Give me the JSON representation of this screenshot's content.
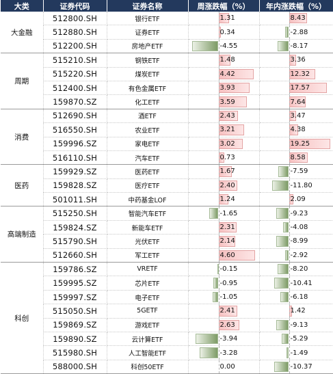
{
  "headers": {
    "category": "大类",
    "code": "证券代码",
    "name": "证券名称",
    "week": "周涨跌幅（%）",
    "year": "年内涨跌幅（%）"
  },
  "colors": {
    "header_bg": "#23395d",
    "positive": "#f4a7a7",
    "negative": "#7d9b66"
  },
  "groups": [
    {
      "name": "大金融",
      "rows": [
        {
          "code": "512800.SH",
          "name": "银行ETF",
          "week": "1.31",
          "year": "8.43"
        },
        {
          "code": "512880.SH",
          "name": "证券ETF",
          "week": "0.34",
          "year": "-2.88"
        },
        {
          "code": "512200.SH",
          "name": "房地产ETF",
          "week": "-4.55",
          "year": "-8.17"
        }
      ]
    },
    {
      "name": "周期",
      "rows": [
        {
          "code": "515210.SH",
          "name": "钢铁ETF",
          "week": "1.48",
          "year": "3.36"
        },
        {
          "code": "515220.SH",
          "name": "煤炭ETF",
          "week": "4.42",
          "year": "12.32"
        },
        {
          "code": "512400.SH",
          "name": "有色金属ETF",
          "week": "3.93",
          "year": "17.57"
        },
        {
          "code": "159870.SZ",
          "name": "化工ETF",
          "week": "3.59",
          "year": "7.64"
        }
      ]
    },
    {
      "name": "消费",
      "rows": [
        {
          "code": "512690.SH",
          "name": "酒ETF",
          "week": "2.43",
          "year": "3.47"
        },
        {
          "code": "516550.SH",
          "name": "农业ETF",
          "week": "3.21",
          "year": "4.38"
        },
        {
          "code": "159996.SZ",
          "name": "家电ETF",
          "week": "3.02",
          "year": "19.25"
        },
        {
          "code": "516110.SH",
          "name": "汽车ETF",
          "week": "0.73",
          "year": "8.58"
        }
      ]
    },
    {
      "name": "医药",
      "rows": [
        {
          "code": "159929.SZ",
          "name": "医药ETF",
          "week": "1.67",
          "year": "-7.59"
        },
        {
          "code": "159828.SZ",
          "name": "医疗ETF",
          "week": "2.40",
          "year": "-11.80"
        },
        {
          "code": "501011.SH",
          "name": "中药基金LOF",
          "week": "1.24",
          "year": "2.09"
        }
      ]
    },
    {
      "name": "高端制造",
      "rows": [
        {
          "code": "515250.SH",
          "name": "智能汽车ETF",
          "week": "-1.65",
          "year": "-9.23"
        },
        {
          "code": "159824.SZ",
          "name": "新能车ETF",
          "week": "2.31",
          "year": "-4.08"
        },
        {
          "code": "515790.SH",
          "name": "光伏ETF",
          "week": "2.14",
          "year": "-8.99"
        },
        {
          "code": "512660.SH",
          "name": "军工ETF",
          "week": "4.60",
          "year": "-2.92"
        }
      ]
    },
    {
      "name": "科创",
      "rows": [
        {
          "code": "159786.SZ",
          "name": "VRETF",
          "week": "-0.15",
          "year": "-8.20"
        },
        {
          "code": "159995.SZ",
          "name": "芯片ETF",
          "week": "-0.95",
          "year": "-10.41"
        },
        {
          "code": "159997.SZ",
          "name": "电子ETF",
          "week": "-1.05",
          "year": "-6.18"
        },
        {
          "code": "515050.SH",
          "name": "5GETF",
          "week": "2.41",
          "year": "1.42"
        },
        {
          "code": "159869.SZ",
          "name": "游戏ETF",
          "week": "2.63",
          "year": "-9.13"
        },
        {
          "code": "159890.SZ",
          "name": "云计算ETF",
          "week": "-3.94",
          "year": "-5.29"
        },
        {
          "code": "515980.SH",
          "name": "人工智能ETF",
          "week": "-3.28",
          "year": "-1.49"
        },
        {
          "code": "588000.SH",
          "name": "科创50ETF",
          "week": "0.00",
          "year": "-10.37"
        }
      ]
    }
  ]
}
